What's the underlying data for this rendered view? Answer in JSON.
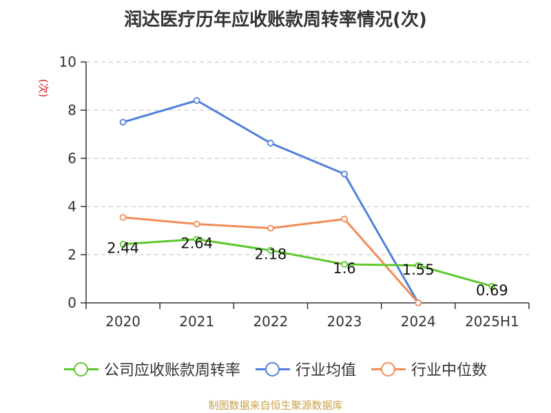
{
  "title": "润达医疗历年应收账款周转率情况(次)",
  "source": "制图数据来自恒生聚源数据库",
  "chart_data": {
    "type": "line",
    "title": "润达医疗历年应收账款周转率情况(次)",
    "ylabel": "(次)",
    "xlabel": "",
    "categories": [
      "2020",
      "2021",
      "2022",
      "2023",
      "2024",
      "2025H1"
    ],
    "ylim": [
      0,
      10
    ],
    "yticks": [
      "0",
      "2",
      "4",
      "6",
      "8",
      "10"
    ],
    "grid": true,
    "legend_position": "bottom",
    "series": [
      {
        "name": "公司应收账款周转率",
        "color": "#5cc72a",
        "values": [
          2.44,
          2.64,
          2.18,
          1.6,
          1.55,
          0.69
        ],
        "labels": [
          "2.44",
          "2.64",
          "2.18",
          "1.6",
          "1.55",
          "0.69"
        ]
      },
      {
        "name": "行业均值",
        "color": "#4f7fdc",
        "values": [
          7.5,
          8.4,
          6.63,
          5.35,
          0,
          null
        ]
      },
      {
        "name": "行业中位数",
        "color": "#f28b55",
        "values": [
          3.55,
          3.27,
          3.1,
          3.48,
          0,
          null
        ]
      }
    ]
  }
}
